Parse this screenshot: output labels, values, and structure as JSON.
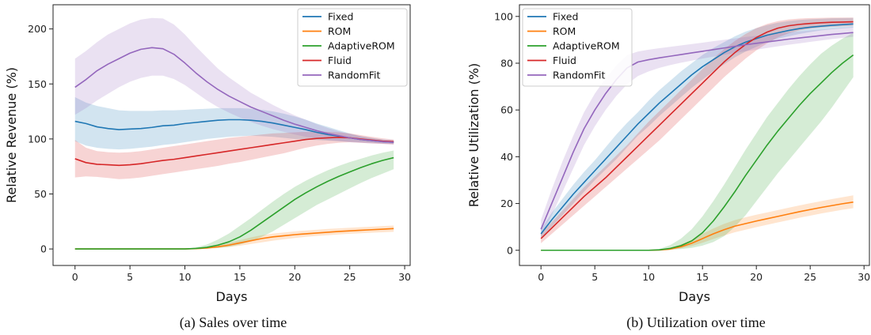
{
  "colors": {
    "Fixed": "#1f77b4",
    "ROM": "#ff7f0e",
    "AdaptiveROM": "#2ca02c",
    "Fluid": "#d62728",
    "RandomFit": "#9467bd"
  },
  "chart_data": [
    {
      "type": "line",
      "caption": "(a) Sales over time",
      "xlabel": "Days",
      "ylabel": "Relative Revenue (%)",
      "xlim": [
        -2,
        30.5
      ],
      "ylim": [
        -15,
        222
      ],
      "xticks": [
        0,
        5,
        10,
        15,
        20,
        25,
        30
      ],
      "yticks": [
        0,
        50,
        100,
        150,
        200
      ],
      "grid": false,
      "legend": "top-right",
      "x": [
        0,
        1,
        2,
        3,
        4,
        5,
        6,
        7,
        8,
        9,
        10,
        11,
        12,
        13,
        14,
        15,
        16,
        17,
        18,
        19,
        20,
        21,
        22,
        23,
        24,
        25,
        26,
        27,
        28,
        29
      ],
      "series": [
        {
          "name": "Fixed",
          "values": [
            116,
            114,
            111,
            109.5,
            108.5,
            109,
            109.5,
            110.5,
            112,
            112.5,
            114,
            115,
            116,
            117,
            117.5,
            117.5,
            117,
            116,
            114.5,
            112.5,
            110.5,
            108.5,
            106,
            104,
            102.5,
            101,
            99.5,
            98.5,
            97.5,
            97
          ],
          "lower": [
            98,
            94,
            92,
            91,
            90.5,
            91,
            92,
            93,
            94.5,
            95.5,
            97,
            98.5,
            100,
            101,
            102,
            102.5,
            103,
            102.5,
            102,
            101,
            100,
            99.5,
            99,
            98.5,
            98,
            97.5,
            97,
            96.5,
            96,
            95.5
          ],
          "upper": [
            138,
            133,
            130,
            128,
            126,
            125.5,
            125.5,
            125.5,
            126,
            126,
            126.5,
            127,
            127.5,
            128,
            128,
            128,
            127.5,
            126.5,
            125,
            123,
            120.5,
            117.5,
            114,
            111,
            108,
            105,
            102.5,
            101,
            99.5,
            98.5
          ]
        },
        {
          "name": "ROM",
          "values": [
            0,
            0,
            0,
            0,
            0,
            0,
            0,
            0,
            0,
            0,
            0,
            0.3,
            0.8,
            2,
            3.5,
            5.5,
            7.5,
            9.5,
            11,
            12,
            13,
            13.8,
            14.5,
            15.2,
            15.9,
            16.5,
            17,
            17.5,
            18,
            18.5
          ],
          "lower": [
            0,
            0,
            0,
            0,
            0,
            0,
            0,
            0,
            0,
            0,
            0,
            0.1,
            0.3,
            0.8,
            1.8,
            3,
            4.5,
            6,
            7.5,
            8.8,
            10,
            11,
            11.8,
            12.5,
            13.2,
            13.8,
            14.3,
            14.8,
            15.2,
            15.6
          ],
          "upper": [
            0,
            0,
            0,
            0,
            0,
            0,
            0,
            0,
            0,
            0,
            0,
            0.6,
            1.5,
            3,
            5.5,
            8,
            10.5,
            12.5,
            14,
            15,
            16,
            16.8,
            17.5,
            18.2,
            18.8,
            19.3,
            19.8,
            20.3,
            20.8,
            21.3
          ]
        },
        {
          "name": "AdaptiveROM",
          "values": [
            0,
            0,
            0,
            0,
            0,
            0,
            0,
            0,
            0,
            0,
            0,
            0.5,
            1.5,
            3.5,
            6.5,
            11,
            17,
            24,
            31,
            38,
            45,
            51,
            56.5,
            61.5,
            66,
            70,
            74,
            77.5,
            80.5,
            83
          ],
          "lower": [
            0,
            0,
            0,
            0,
            0,
            0,
            0,
            0,
            0,
            0,
            0,
            0.1,
            0.5,
            1,
            2,
            4,
            7,
            11,
            16,
            22,
            28,
            34,
            40,
            45,
            50,
            55,
            60,
            64.5,
            68.5,
            72.5
          ],
          "upper": [
            0,
            0,
            0,
            0,
            0,
            0,
            0,
            0,
            0,
            0,
            0,
            1.5,
            4,
            8.5,
            14,
            21,
            28,
            35.5,
            43,
            50,
            56.5,
            62,
            67,
            71.5,
            75.5,
            79,
            82,
            85,
            87.5,
            89.5
          ]
        },
        {
          "name": "Fluid",
          "values": [
            82,
            78.5,
            77,
            76.5,
            76,
            76.5,
            77.5,
            79,
            80.5,
            81.5,
            83,
            84.5,
            86,
            87.5,
            89,
            90.5,
            92,
            93.5,
            95,
            96.5,
            98,
            99.5,
            100.5,
            101,
            101.5,
            101,
            100,
            99,
            98,
            97.5
          ],
          "lower": [
            65,
            66,
            65.5,
            64.5,
            63.5,
            64,
            65,
            66.5,
            68,
            69.5,
            71,
            72.5,
            74,
            75.5,
            77.5,
            79,
            81,
            83,
            85,
            87,
            89.5,
            92,
            94,
            95.5,
            96.5,
            97,
            96.5,
            96,
            95.5,
            95
          ],
          "upper": [
            99,
            92,
            89,
            88,
            87.5,
            88,
            89,
            90.5,
            92,
            93.5,
            95,
            96.5,
            98,
            99.5,
            101,
            102,
            103,
            104,
            105,
            105.5,
            106,
            106.5,
            106.5,
            106.5,
            106,
            105,
            103.5,
            102,
            100.5,
            99.5
          ]
        },
        {
          "name": "RandomFit",
          "values": [
            147,
            154,
            162,
            168,
            173,
            178,
            181.5,
            183,
            182,
            177,
            169,
            160,
            152,
            145,
            139,
            134,
            129,
            125,
            121,
            117,
            113.5,
            110.5,
            107.5,
            105,
            103,
            101,
            99.5,
            98.5,
            97.5,
            97
          ],
          "lower": [
            122,
            128,
            135,
            141,
            147,
            152,
            155.5,
            157.5,
            157.5,
            154.5,
            149,
            142,
            135,
            129,
            124,
            119.5,
            115.5,
            112,
            109,
            106.5,
            104,
            102,
            100.5,
            99,
            98,
            97,
            96.5,
            96,
            95.5,
            95
          ],
          "upper": [
            173,
            180,
            188,
            195,
            200,
            205,
            208.5,
            210,
            209.5,
            204,
            195,
            184,
            174,
            164,
            156,
            149,
            142,
            136.5,
            131,
            126,
            121.5,
            117.5,
            113.5,
            110,
            107,
            104.5,
            102.5,
            100.5,
            99.5,
            99
          ]
        }
      ]
    },
    {
      "type": "line",
      "caption": "(b) Utilization over time",
      "xlabel": "Days",
      "ylabel": "Relative Utilization (%)",
      "xlim": [
        -2,
        30.5
      ],
      "ylim": [
        -6.5,
        105
      ],
      "xticks": [
        0,
        5,
        10,
        15,
        20,
        25,
        30
      ],
      "yticks": [
        0,
        20,
        40,
        60,
        80,
        100
      ],
      "grid": false,
      "legend": "top-left",
      "x": [
        0,
        1,
        2,
        3,
        4,
        5,
        6,
        7,
        8,
        9,
        10,
        11,
        12,
        13,
        14,
        15,
        16,
        17,
        18,
        19,
        20,
        21,
        22,
        23,
        24,
        25,
        26,
        27,
        28,
        29
      ],
      "series": [
        {
          "name": "Fixed",
          "values": [
            7,
            13,
            18.5,
            24,
            29,
            34,
            39,
            44,
            49,
            54,
            58.5,
            63,
            67,
            71,
            75,
            78.5,
            81.5,
            84.5,
            87,
            89,
            90.5,
            92,
            93,
            94,
            94.8,
            95.4,
            95.8,
            96.2,
            96.5,
            96.8
          ],
          "lower": [
            5,
            10,
            15,
            20,
            25,
            30,
            34.5,
            39,
            44,
            49,
            53,
            57.5,
            61.5,
            65.5,
            69.5,
            73,
            76.5,
            79.5,
            82.5,
            85,
            87,
            89,
            90.5,
            91.5,
            92.5,
            93.3,
            94,
            94.5,
            94.9,
            95.2
          ],
          "upper": [
            9,
            16,
            22,
            28,
            33.5,
            38.5,
            44,
            49.5,
            54.5,
            59,
            64,
            68.5,
            72.5,
            76.5,
            80,
            83.5,
            86.5,
            89,
            91.5,
            93.5,
            95,
            96.3,
            97.3,
            98,
            98.5,
            98.8,
            99,
            99.2,
            99.3,
            99.4
          ]
        },
        {
          "name": "ROM",
          "values": [
            0,
            0,
            0,
            0,
            0,
            0,
            0,
            0,
            0,
            0,
            0,
            0.1,
            0.5,
            1.5,
            3,
            5,
            7,
            8.8,
            10.3,
            11.4,
            12.5,
            13.5,
            14.5,
            15.5,
            16.5,
            17.4,
            18.3,
            19.1,
            19.9,
            20.6
          ],
          "lower": [
            0,
            0,
            0,
            0,
            0,
            0,
            0,
            0,
            0,
            0,
            0,
            0,
            0.2,
            0.8,
            1.8,
            3.2,
            4.8,
            6.3,
            7.7,
            8.8,
            9.9,
            10.9,
            11.9,
            12.9,
            13.9,
            14.8,
            15.7,
            16.5,
            17.3,
            18
          ],
          "upper": [
            0,
            0,
            0,
            0,
            0,
            0,
            0,
            0,
            0,
            0,
            0,
            0.3,
            1,
            2.5,
            4.5,
            7,
            9.3,
            11.3,
            12.9,
            14.1,
            15.2,
            16.2,
            17.2,
            18.2,
            19.2,
            20.1,
            21,
            21.9,
            22.7,
            23.5
          ]
        },
        {
          "name": "AdaptiveROM",
          "values": [
            0,
            0,
            0,
            0,
            0,
            0,
            0,
            0,
            0,
            0,
            0,
            0.2,
            0.8,
            2,
            4,
            7.5,
            12.5,
            18.5,
            25,
            32,
            38.5,
            45,
            51,
            56.5,
            62,
            67,
            71.5,
            76,
            80,
            83.5
          ],
          "lower": [
            0,
            0,
            0,
            0,
            0,
            0,
            0,
            0,
            0,
            0,
            0,
            0,
            0.2,
            0.5,
            1,
            2,
            3.5,
            6,
            10,
            15,
            21,
            27,
            33,
            38.5,
            44,
            49.5,
            55,
            61,
            67.5,
            74
          ],
          "upper": [
            0,
            0,
            0,
            0,
            0,
            0,
            0,
            0,
            0,
            0,
            0,
            0.6,
            2.2,
            5,
            9,
            14.5,
            21,
            28,
            35.5,
            43,
            50,
            57,
            63,
            69,
            74.5,
            79.5,
            84,
            87.5,
            90.5,
            93
          ]
        },
        {
          "name": "Fluid",
          "values": [
            5,
            9.5,
            14,
            18.5,
            23,
            27,
            31,
            35.5,
            40,
            44.5,
            49,
            53.5,
            58,
            62.5,
            67,
            71.5,
            76,
            80.5,
            84.5,
            88,
            91,
            93.3,
            95,
            96,
            96.6,
            97,
            97.3,
            97.5,
            97.6,
            97.7
          ],
          "lower": [
            3,
            7,
            11,
            15,
            19,
            23,
            27,
            31,
            35,
            39,
            43,
            47,
            51.5,
            56,
            60.5,
            65,
            69.5,
            74,
            78,
            82,
            85.5,
            88.5,
            91,
            92.8,
            94,
            94.8,
            95.3,
            95.6,
            95.8,
            96
          ],
          "upper": [
            7,
            12,
            17,
            22,
            27,
            31.5,
            36,
            40.5,
            45,
            50,
            55,
            59.5,
            64,
            68.5,
            73,
            77.5,
            82,
            86,
            89.5,
            92.5,
            95,
            96.8,
            98,
            98.7,
            99.1,
            99.3,
            99.4,
            99.5,
            99.5,
            99.5
          ]
        },
        {
          "name": "RandomFit",
          "values": [
            9,
            20,
            31,
            42,
            52,
            60,
            67,
            73,
            78,
            80.5,
            81.5,
            82.3,
            83,
            83.7,
            84.4,
            85.1,
            85.8,
            86.5,
            87.2,
            87.9,
            88.5,
            89.1,
            89.7,
            90.3,
            90.8,
            91.3,
            91.8,
            92.3,
            92.7,
            93.1
          ],
          "lower": [
            6,
            15,
            25,
            35,
            45,
            53,
            60,
            66,
            71,
            74.5,
            76.5,
            78,
            79.2,
            80.2,
            81.1,
            82,
            82.8,
            83.6,
            84.4,
            85.1,
            85.8,
            86.5,
            87.2,
            87.9,
            88.5,
            89.1,
            89.7,
            90.3,
            90.8,
            91.3
          ],
          "upper": [
            13,
            26,
            38,
            49,
            59,
            67,
            73.5,
            79,
            83.5,
            85,
            85.8,
            86.4,
            87,
            87.6,
            88.2,
            88.8,
            89.4,
            90,
            90.6,
            91.2,
            91.7,
            92.2,
            92.7,
            93.2,
            93.6,
            94,
            94.4,
            94.8,
            95.2,
            95.5
          ]
        }
      ]
    }
  ]
}
